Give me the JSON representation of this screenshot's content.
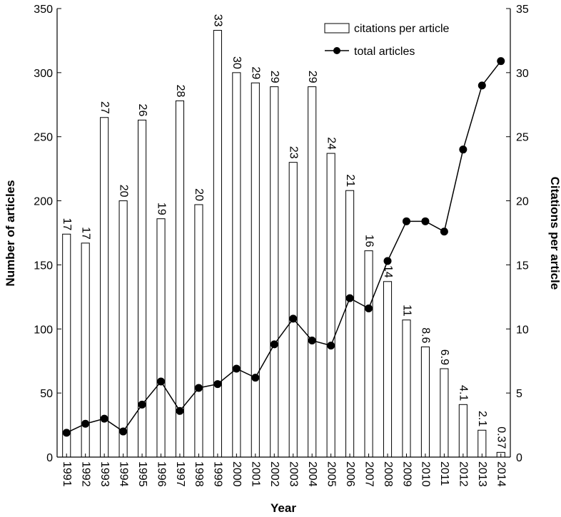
{
  "chart_data": {
    "type": "bar",
    "categories": [
      "1991",
      "1992",
      "1993",
      "1994",
      "1995",
      "1996",
      "1997",
      "1998",
      "1999",
      "2000",
      "2001",
      "2002",
      "2003",
      "2004",
      "2005",
      "2006",
      "2007",
      "2008",
      "2009",
      "2010",
      "2011",
      "2012",
      "2013",
      "2014"
    ],
    "xlabel": "Year",
    "ylabel": "Number of articles",
    "y2label": "Citations per article",
    "ylim": [
      0,
      350
    ],
    "y2lim": [
      0,
      35
    ],
    "yticks": [
      0,
      50,
      100,
      150,
      200,
      250,
      300,
      350
    ],
    "y2ticks": [
      0,
      5,
      10,
      15,
      20,
      25,
      30,
      35
    ],
    "grid": false,
    "legend_position": "top-right",
    "series": [
      {
        "name": "citations per article",
        "type": "bar",
        "axis": "right",
        "values": [
          17.4,
          16.7,
          26.5,
          20.0,
          26.3,
          18.6,
          27.8,
          19.7,
          33.3,
          30.0,
          29.2,
          28.9,
          23.0,
          28.9,
          23.7,
          20.8,
          16.1,
          13.7,
          10.7,
          8.6,
          6.9,
          4.1,
          2.1,
          0.37
        ],
        "labels": [
          "17",
          "17",
          "27",
          "20",
          "26",
          "19",
          "28",
          "20",
          "33",
          "30",
          "29",
          "29",
          "23",
          "29",
          "24",
          "21",
          "16",
          "14",
          "11",
          "8.6",
          "6.9",
          "4.1",
          "2.1",
          "0.37"
        ]
      },
      {
        "name": "total articles",
        "type": "line",
        "axis": "left",
        "values": [
          19,
          26,
          30,
          20,
          41,
          59,
          36,
          54,
          57,
          69,
          62,
          88,
          108,
          91,
          87,
          124,
          116,
          153,
          184,
          184,
          176,
          240,
          290,
          309
        ]
      }
    ]
  }
}
